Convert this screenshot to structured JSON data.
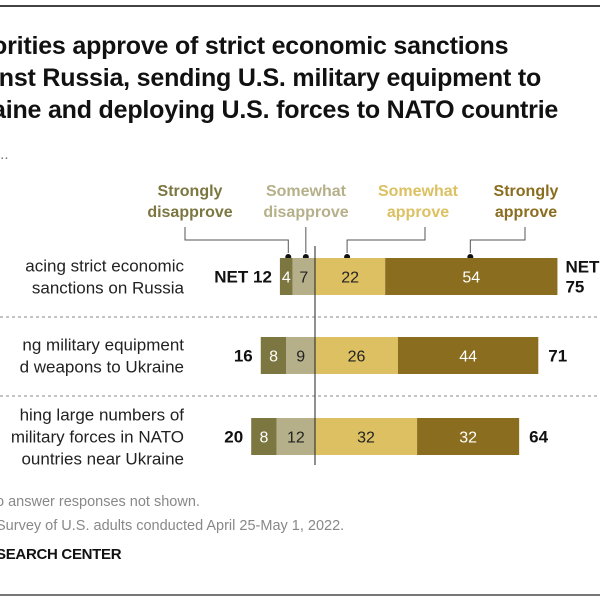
{
  "title_lines": [
    "orities approve of strict economic sanctions",
    "inst Russia, sending U.S. military equipment to",
    "aine and deploying U.S. forces to NATO countrie"
  ],
  "subtitle": "...",
  "notes": [
    "o answer responses not shown.",
    "Survey of U.S. adults conducted April 25-May 1, 2022."
  ],
  "source": "SEARCH CENTER",
  "chart_data": {
    "type": "bar",
    "orientation": "horizontal-diverging",
    "title": "Majorities approve of strict economic sanctions against Russia, sending U.S. military equipment to Ukraine and deploying U.S. forces to NATO countries",
    "legend": [
      {
        "name": "Strongly disapprove",
        "color": "#7c7640",
        "side": "negative"
      },
      {
        "name": "Somewhat disapprove",
        "color": "#b6b08a",
        "side": "negative"
      },
      {
        "name": "Somewhat approve",
        "color": "#dcc062",
        "side": "positive"
      },
      {
        "name": "Strongly approve",
        "color": "#8a6d1e",
        "side": "positive"
      }
    ],
    "legend_line1": [
      "Strongly",
      "Somewhat",
      "Somewhat",
      "Strongly"
    ],
    "legend_line2": [
      "disapprove",
      "disapprove",
      "approve",
      "approve"
    ],
    "legend_text_colors": [
      "#7c7640",
      "#b6b08a",
      "#dcc062",
      "#8a6d1e"
    ],
    "categories": [
      [
        "acing strict economic",
        "sanctions on Russia"
      ],
      [
        "ng military equipment",
        "d weapons to Ukraine"
      ],
      [
        "hing large numbers of",
        "military forces in NATO",
        "ountries near Ukraine"
      ]
    ],
    "series": [
      {
        "name": "Strongly disapprove",
        "values": [
          4,
          8,
          8
        ]
      },
      {
        "name": "Somewhat disapprove",
        "values": [
          7,
          9,
          12
        ]
      },
      {
        "name": "Somewhat approve",
        "values": [
          22,
          26,
          32
        ]
      },
      {
        "name": "Strongly approve",
        "values": [
          54,
          44,
          32
        ]
      }
    ],
    "net_disapprove": [
      12,
      16,
      20
    ],
    "net_approve": [
      75,
      71,
      64
    ],
    "net_prefix_first_row": "NET"
  }
}
